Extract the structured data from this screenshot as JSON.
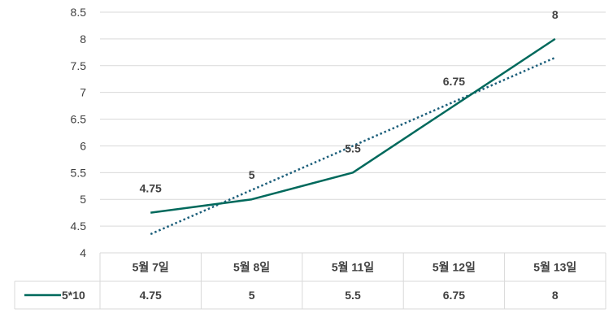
{
  "chart_data": {
    "type": "line",
    "categories": [
      "5월 7일",
      "5월 8일",
      "5월 11일",
      "5월 12일",
      "5월 13일"
    ],
    "series": [
      {
        "name": "5*10",
        "values": [
          4.75,
          5,
          5.5,
          6.75,
          8
        ],
        "color": "#00695c"
      }
    ],
    "data_labels": [
      "4.75",
      "5",
      "5.5",
      "6.75",
      "8"
    ],
    "trendline": {
      "type": "linear",
      "style": "dotted",
      "color": "#1b5e7a"
    },
    "yticks": [
      "4",
      "4.5",
      "5",
      "5.5",
      "6",
      "6.5",
      "7",
      "7.5",
      "8",
      "8.5"
    ],
    "ylim": [
      4,
      8.5
    ],
    "grid": true,
    "legend": "data-table",
    "data_table": true,
    "table_values": [
      "4.75",
      "5",
      "5.5",
      "6.75",
      "8"
    ]
  }
}
